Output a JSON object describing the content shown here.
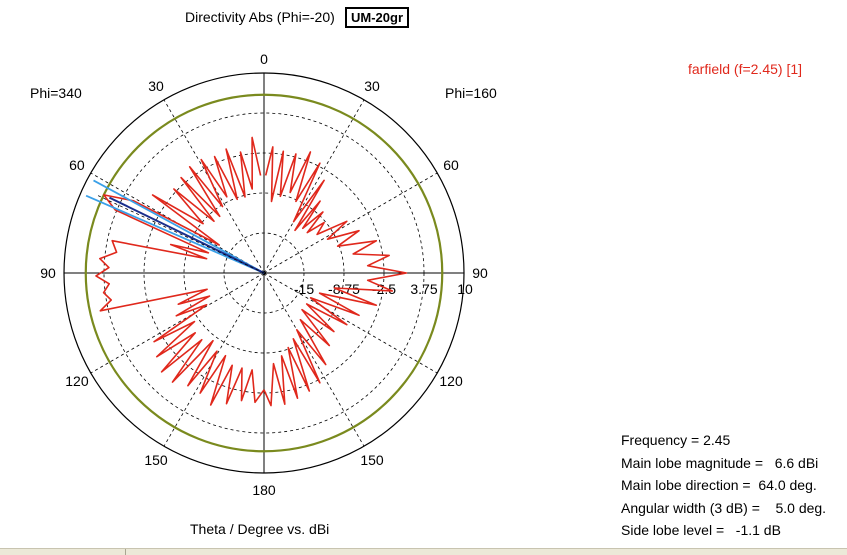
{
  "header": {
    "title": "Directivity Abs (Phi=-20)",
    "badge": "UM-20gr"
  },
  "plot_labels": {
    "phi_left": "Phi=340",
    "phi_right": "Phi=160",
    "legend": "farfield (f=2.45) [1]",
    "xlabel": "Theta / Degree vs. dBi"
  },
  "info": {
    "frequency": "Frequency = 2.45",
    "main_lobe_magnitude": "Main lobe magnitude =   6.6 dBi",
    "main_lobe_direction": "Main lobe direction =  64.0 deg.",
    "angular_width": "Angular width (3 dB) =    5.0 deg.",
    "side_lobe_level": "Side lobe level =   -1.1 dB"
  },
  "colors": {
    "pattern": "#e0281c",
    "reference_circle": "#7a8a1e",
    "main_lobe_line": "#1a2f8c",
    "beamwidth_lines": "#3aa0e8",
    "grid": "#000000"
  },
  "chart_data": {
    "type": "polar",
    "title": "Directivity Abs (Phi=-20)",
    "xlabel": "Theta / Degree vs. dBi",
    "radial_ticks": [
      "-15",
      "-8.75",
      "-2.5",
      "3.75",
      "10"
    ],
    "angle_ticks": [
      "0",
      "30",
      "60",
      "90",
      "120",
      "150",
      "180",
      "150",
      "120",
      "90",
      "60",
      "30"
    ],
    "rlim": [
      -21.25,
      10
    ],
    "reference_level_db": 6.6,
    "main_lobe_direction_deg": 64.0,
    "angular_width_deg": 5.0,
    "series": [
      {
        "name": "farfield (f=2.45) [1]",
        "side": "right",
        "points": [
          [
            1,
            -6
          ],
          [
            4,
            -1.5
          ],
          [
            6,
            -10
          ],
          [
            9,
            -2
          ],
          [
            12,
            -9
          ],
          [
            15,
            -2
          ],
          [
            18,
            -8
          ],
          [
            21,
            -1
          ],
          [
            24,
            -9
          ],
          [
            27,
            -2
          ],
          [
            30,
            -12
          ],
          [
            33,
            -4
          ],
          [
            36,
            -13
          ],
          [
            38,
            -7
          ],
          [
            41,
            -12
          ],
          [
            44,
            -8
          ],
          [
            47,
            -12
          ],
          [
            50,
            -9
          ],
          [
            54,
            -11
          ],
          [
            58,
            -6
          ],
          [
            62,
            -10
          ],
          [
            66,
            -5
          ],
          [
            70,
            -9
          ],
          [
            74,
            -3
          ],
          [
            78,
            -7
          ],
          [
            82,
            -1.5
          ],
          [
            86,
            -5
          ],
          [
            90,
            1
          ],
          [
            94,
            -5
          ],
          [
            98,
            -1
          ],
          [
            102,
            -10
          ],
          [
            106,
            -3
          ],
          [
            110,
            -12
          ],
          [
            114,
            -5
          ],
          [
            118,
            -13
          ],
          [
            122,
            -6
          ],
          [
            126,
            -13
          ],
          [
            130,
            -7
          ],
          [
            134,
            -13
          ],
          [
            138,
            -6
          ],
          [
            142,
            -12
          ],
          [
            146,
            -4
          ],
          [
            150,
            -11
          ],
          [
            153,
            -2
          ],
          [
            156,
            -10
          ],
          [
            159,
            -1.5
          ],
          [
            162,
            -9
          ],
          [
            165,
            -1
          ],
          [
            168,
            -8
          ],
          [
            171,
            -0.5
          ],
          [
            174,
            -7
          ],
          [
            177,
            -0.5
          ],
          [
            180,
            -3
          ]
        ]
      },
      {
        "name": "",
        "side": "left",
        "points": [
          [
            2,
            -6
          ],
          [
            5,
            0
          ],
          [
            8,
            -8
          ],
          [
            11,
            -2
          ],
          [
            14,
            -9
          ],
          [
            17,
            -1
          ],
          [
            20,
            -9
          ],
          [
            23,
            -1.5
          ],
          [
            26,
            -8
          ],
          [
            29,
            -1
          ],
          [
            32,
            -9
          ],
          [
            35,
            -1
          ],
          [
            38,
            -10
          ],
          [
            41,
            -1.5
          ],
          [
            44,
            -10
          ],
          [
            47,
            -2
          ],
          [
            51,
            -9
          ],
          [
            55,
            0
          ],
          [
            58,
            -13
          ],
          [
            61,
            2
          ],
          [
            64,
            6.6
          ],
          [
            67,
            4
          ],
          [
            70,
            -12
          ],
          [
            73,
            -6
          ],
          [
            76,
            -12
          ],
          [
            78,
            3
          ],
          [
            82,
            2
          ],
          [
            85,
            4.5
          ],
          [
            88,
            3
          ],
          [
            91,
            5
          ],
          [
            94,
            3
          ],
          [
            97,
            4
          ],
          [
            100,
            3
          ],
          [
            103,
            5
          ],
          [
            106,
            -12
          ],
          [
            110,
            -7
          ],
          [
            113,
            -12
          ],
          [
            116,
            -6
          ],
          [
            119,
            -11
          ],
          [
            122,
            -1
          ],
          [
            125,
            -8
          ],
          [
            128,
            0
          ],
          [
            131,
            -7
          ],
          [
            134,
            1
          ],
          [
            137,
            -7
          ],
          [
            140,
            1
          ],
          [
            143,
            -8
          ],
          [
            146,
            0
          ],
          [
            149,
            -7
          ],
          [
            152,
            0
          ],
          [
            155,
            -7
          ],
          [
            158,
            1
          ],
          [
            161,
            -6
          ],
          [
            164,
            0
          ],
          [
            167,
            -6
          ],
          [
            170,
            -1
          ],
          [
            173,
            -6
          ],
          [
            176,
            -1
          ],
          [
            180,
            -3
          ]
        ]
      }
    ]
  }
}
